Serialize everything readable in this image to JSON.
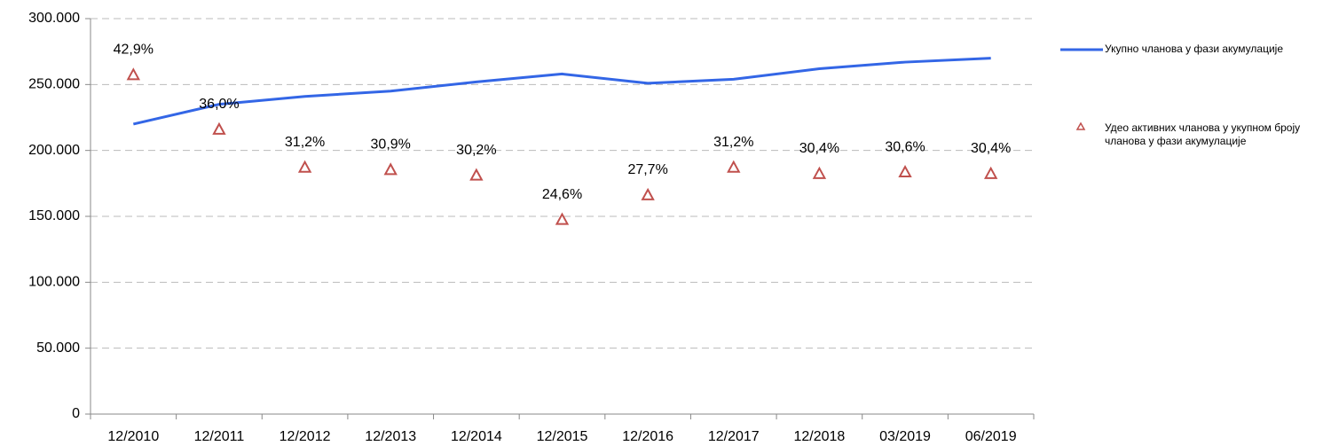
{
  "chart_data": {
    "type": "line",
    "categories": [
      "12/2010",
      "12/2011",
      "12/2012",
      "12/2013",
      "12/2014",
      "12/2015",
      "12/2016",
      "12/2017",
      "12/2018",
      "03/2019",
      "06/2019"
    ],
    "series": [
      {
        "name": "Укупно чланова у фази акумулације",
        "color": "#3366e6",
        "type": "line",
        "values": [
          220000,
          235000,
          241000,
          245000,
          252000,
          258000,
          251000,
          254000,
          262000,
          267000,
          270000
        ]
      },
      {
        "name": "Удео активних чланова у укупном броју чланова у фази акумулације",
        "color": "#c0504d",
        "type": "scatter",
        "axis": "y2",
        "values": [
          42.9,
          36.0,
          31.2,
          30.9,
          30.2,
          24.6,
          27.7,
          31.2,
          30.4,
          30.6,
          30.4
        ],
        "value_labels": [
          "42,9%",
          "36,0%",
          "31,2%",
          "30,9%",
          "30,2%",
          "24,6%",
          "27,7%",
          "31,2%",
          "30,4%",
          "30,6%",
          "30,4%"
        ]
      }
    ],
    "ylim": [
      0,
      300000
    ],
    "yticks": [
      0,
      {
        "value": 50000,
        "label": "50.000"
      },
      {
        "value": 100000,
        "label": "100.000"
      },
      {
        "value": 150000,
        "label": "150.000"
      },
      {
        "value": 200000,
        "label": "200.000"
      },
      {
        "value": 250000,
        "label": "250.000"
      },
      {
        "value": 300000,
        "label": "300.000"
      }
    ],
    "y2lim": [
      0,
      50
    ],
    "grid": true,
    "legend": "right"
  }
}
